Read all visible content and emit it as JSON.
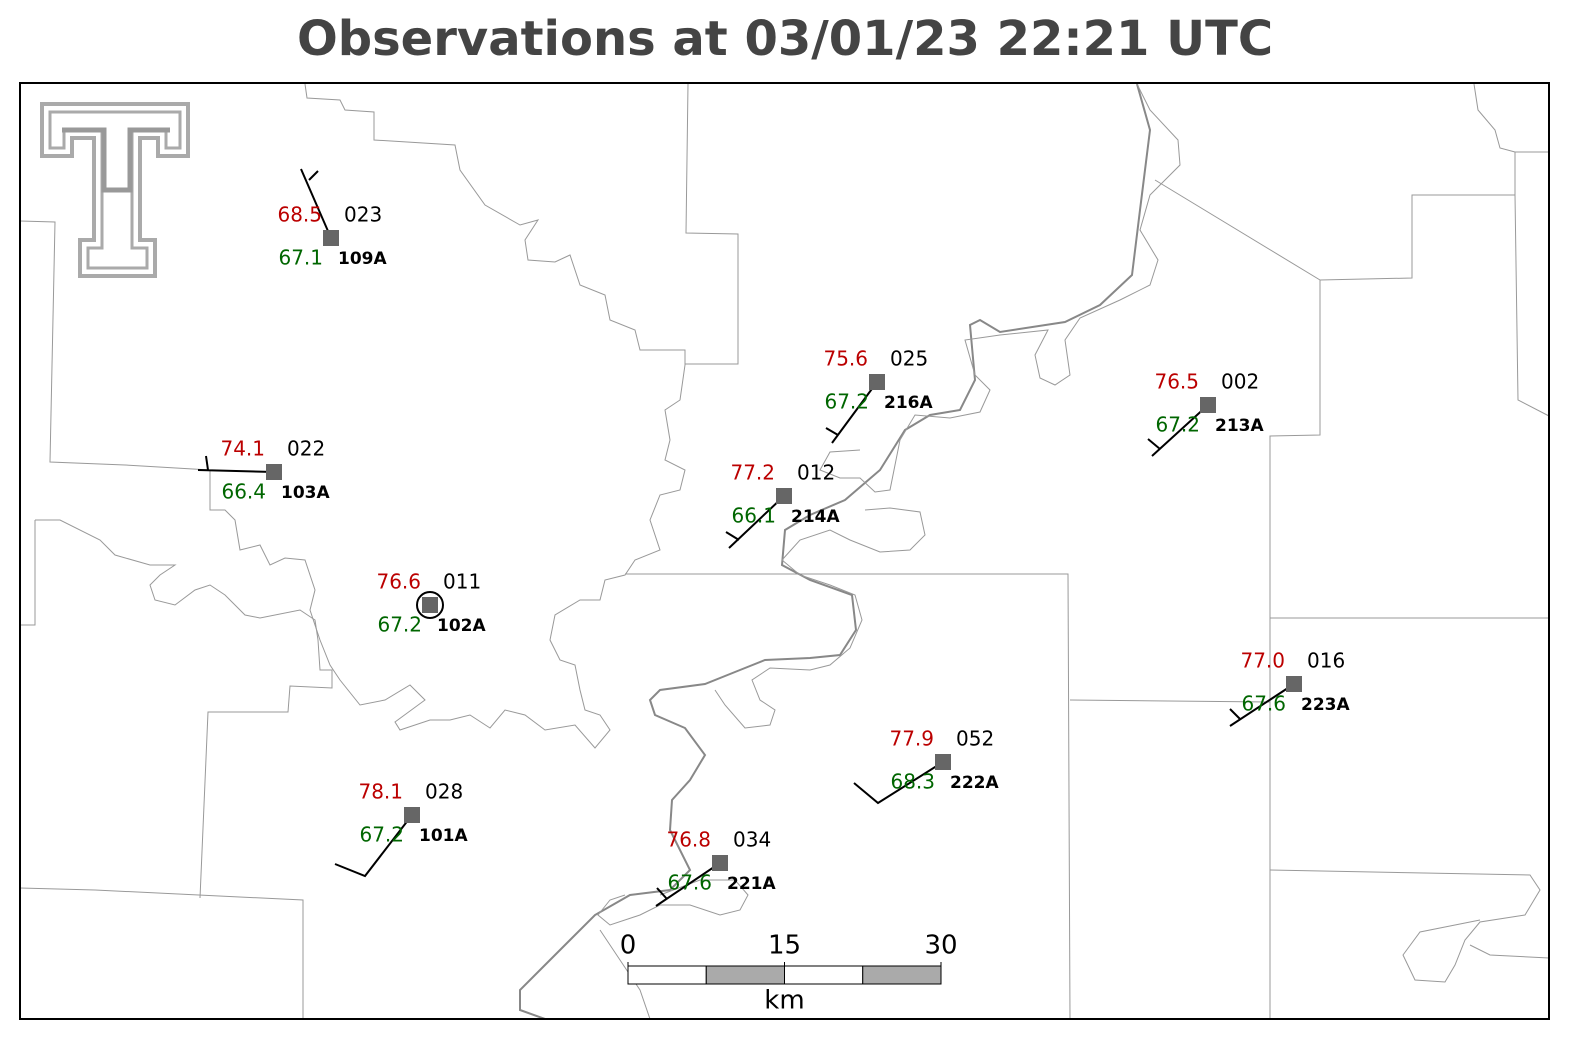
{
  "title": "Observations at 03/01/23 22:21 UTC",
  "stations": [
    {
      "temperature": "68.5",
      "pressure": "023",
      "dewpoint": "67.1",
      "id": "109A"
    },
    {
      "temperature": "74.1",
      "pressure": "022",
      "dewpoint": "66.4",
      "id": "103A"
    },
    {
      "temperature": "76.6",
      "pressure": "011",
      "dewpoint": "67.2",
      "id": "102A"
    },
    {
      "temperature": "78.1",
      "pressure": "028",
      "dewpoint": "67.2",
      "id": "101A"
    },
    {
      "temperature": "76.8",
      "pressure": "034",
      "dewpoint": "67.6",
      "id": "221A"
    },
    {
      "temperature": "77.9",
      "pressure": "052",
      "dewpoint": "68.3",
      "id": "222A"
    },
    {
      "temperature": "77.2",
      "pressure": "012",
      "dewpoint": "66.1",
      "id": "214A"
    },
    {
      "temperature": "75.6",
      "pressure": "025",
      "dewpoint": "67.2",
      "id": "216A"
    },
    {
      "temperature": "76.5",
      "pressure": "002",
      "dewpoint": "67.2",
      "id": "213A"
    },
    {
      "temperature": "77.0",
      "pressure": "016",
      "dewpoint": "67.6",
      "id": "223A"
    }
  ],
  "scale_bar": {
    "ticks": [
      0,
      15,
      30
    ],
    "unit": "km"
  }
}
